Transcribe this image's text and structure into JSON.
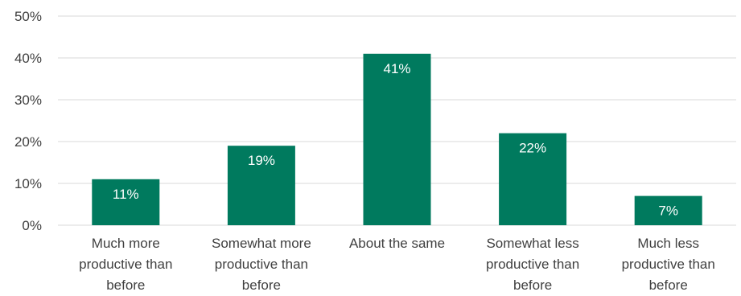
{
  "chart_data": {
    "type": "bar",
    "categories": [
      [
        "Much more",
        "productive than",
        "before"
      ],
      [
        "Somewhat more",
        "productive than",
        "before"
      ],
      [
        "About the same"
      ],
      [
        "Somewhat less",
        "productive than",
        "before"
      ],
      [
        "Much less",
        "productive than",
        "before"
      ]
    ],
    "values": [
      11,
      19,
      41,
      22,
      7
    ],
    "data_labels": [
      "11%",
      "19%",
      "41%",
      "22%",
      "7%"
    ],
    "yticks": [
      0,
      10,
      20,
      30,
      40,
      50
    ],
    "ytick_labels": [
      "0%",
      "10%",
      "20%",
      "30%",
      "40%",
      "50%"
    ],
    "ylim": [
      0,
      50
    ],
    "title": "",
    "xlabel": "",
    "ylabel": "",
    "grid": true,
    "legend": "none",
    "bar_color": "#007a5e"
  }
}
